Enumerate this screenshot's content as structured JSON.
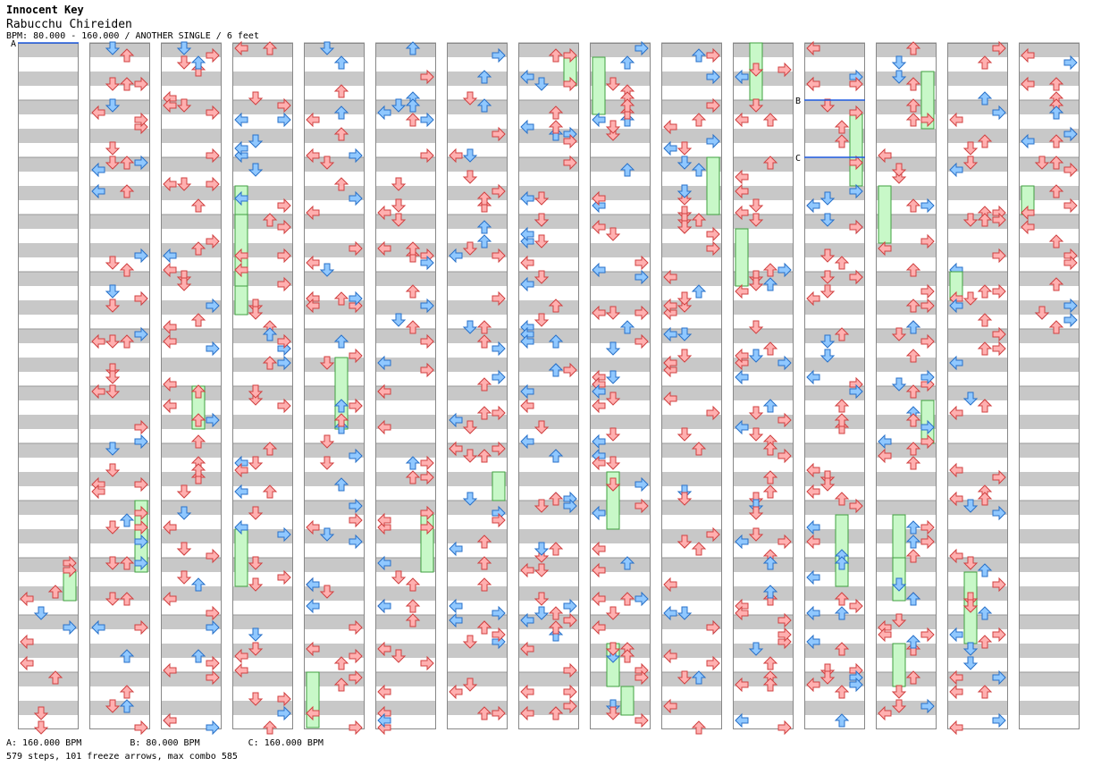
{
  "header": {
    "artist": "Innocent Key",
    "title": "Rabucchu Chireiden",
    "info": "BPM: 80.000 - 160.000 / ANOTHER SINGLE / 6 feet"
  },
  "colors": {
    "stripe_gray": "#c8c8c8",
    "stripe_white": "#ffffff",
    "column_border": "#888888",
    "arrow_red_fill": "#ffb0b0",
    "arrow_red_stroke": "#d04040",
    "arrow_blue_fill": "#90c8ff",
    "arrow_blue_stroke": "#2870c8",
    "freeze_fill": "#c8f8c8",
    "freeze_stroke": "#40a040",
    "bpm_marker": "#1e5ae0"
  },
  "chart": {
    "columns": 15,
    "measures_per_column": 12,
    "lanes": [
      "left",
      "down",
      "up",
      "right"
    ],
    "total_measures": 173
  },
  "bpm_markers": [
    {
      "label": "A",
      "column": 0,
      "measure": 0
    },
    {
      "label": "B",
      "column": 11,
      "measure": 1
    },
    {
      "label": "C",
      "column": 11,
      "measure": 2
    }
  ],
  "footer": {
    "bpm_a": "A: 160.000 BPM",
    "bpm_b": "B: 80.000 BPM",
    "bpm_c": "C: 160.000 BPM",
    "summary": "579 steps, 101 freeze arrows, max combo 585"
  }
}
